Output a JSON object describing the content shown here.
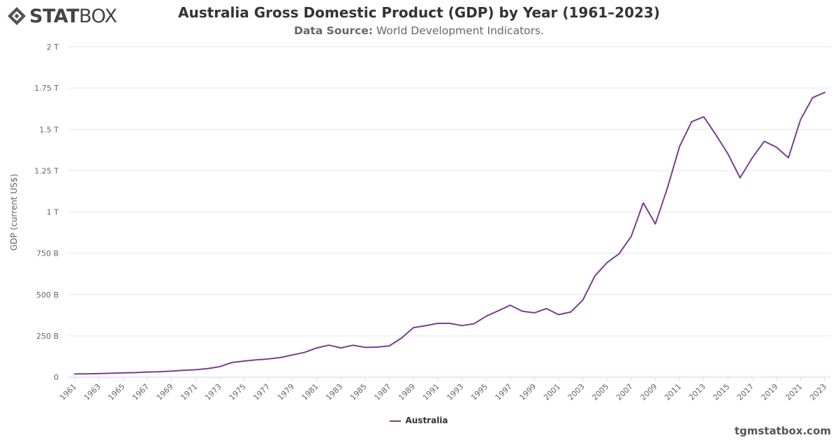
{
  "logo": {
    "text_bold": "STAT",
    "text_light": "BOX"
  },
  "title": "Australia Gross Domestic Product (GDP) by Year (1961–2023)",
  "subtitle": {
    "label": "Data Source:",
    "value": "World Development Indicators."
  },
  "credit": "tgmstatbox.com",
  "chart_data": {
    "type": "line",
    "title": "Australia Gross Domestic Product (GDP) by Year (1961–2023)",
    "ylabel": "GDP (current US$)",
    "xlabel": "",
    "ylim": [
      0,
      2000
    ],
    "y_unit": "billions of current US$",
    "y_ticks": [
      {
        "value": 0,
        "label": "0"
      },
      {
        "value": 250,
        "label": "250 B"
      },
      {
        "value": 500,
        "label": "500 B"
      },
      {
        "value": 750,
        "label": "750 B"
      },
      {
        "value": 1000,
        "label": "1 T"
      },
      {
        "value": 1250,
        "label": "1.25 T"
      },
      {
        "value": 1500,
        "label": "1.5 T"
      },
      {
        "value": 1750,
        "label": "1.75 T"
      },
      {
        "value": 2000,
        "label": "2 T"
      }
    ],
    "x_tick_labels": [
      "1961",
      "1963",
      "1965",
      "1967",
      "1969",
      "1971",
      "1973",
      "1975",
      "1977",
      "1979",
      "1981",
      "1983",
      "1985",
      "1987",
      "1989",
      "1991",
      "1993",
      "1995",
      "1997",
      "1999",
      "2001",
      "2003",
      "2005",
      "2007",
      "2009",
      "2011",
      "2013",
      "2015",
      "2017",
      "2019",
      "2021",
      "2023"
    ],
    "legend": "bottom-center",
    "grid": true,
    "colors": {
      "series": "#7a3e8f",
      "grid": "#e6e6e6"
    },
    "x": [
      1961,
      1962,
      1963,
      1964,
      1965,
      1966,
      1967,
      1968,
      1969,
      1970,
      1971,
      1972,
      1973,
      1974,
      1975,
      1976,
      1977,
      1978,
      1979,
      1980,
      1981,
      1982,
      1983,
      1984,
      1985,
      1986,
      1987,
      1988,
      1989,
      1990,
      1991,
      1992,
      1993,
      1994,
      1995,
      1996,
      1997,
      1998,
      1999,
      2000,
      2001,
      2002,
      2003,
      2004,
      2005,
      2006,
      2007,
      2008,
      2009,
      2010,
      2011,
      2012,
      2013,
      2014,
      2015,
      2016,
      2017,
      2018,
      2019,
      2020,
      2021,
      2022,
      2023
    ],
    "series": [
      {
        "name": "Australia",
        "values": [
          19.6,
          19.9,
          21.5,
          23.8,
          25.9,
          27.3,
          30.4,
          32.7,
          36.6,
          41.3,
          45.1,
          51.9,
          63.7,
          88.8,
          97.2,
          104.8,
          110.2,
          118.3,
          134.6,
          149.8,
          176.6,
          193.8,
          176.9,
          193.2,
          180.2,
          182.0,
          189.1,
          235.7,
          299.6,
          311.4,
          325.5,
          325.4,
          312.1,
          322.8,
          368.2,
          401.3,
          435.5,
          399.0,
          389.1,
          415.0,
          378.4,
          394.3,
          466.5,
          612.9,
          693.3,
          747.0,
          851.9,
          1055.0,
          927.8,
          1146.1,
          1396.6,
          1546.2,
          1576.2,
          1467.5,
          1351.5,
          1206.8,
          1326.5,
          1428.0,
          1392.4,
          1328.4,
          1559.0,
          1692.0,
          1723.8
        ]
      }
    ]
  }
}
